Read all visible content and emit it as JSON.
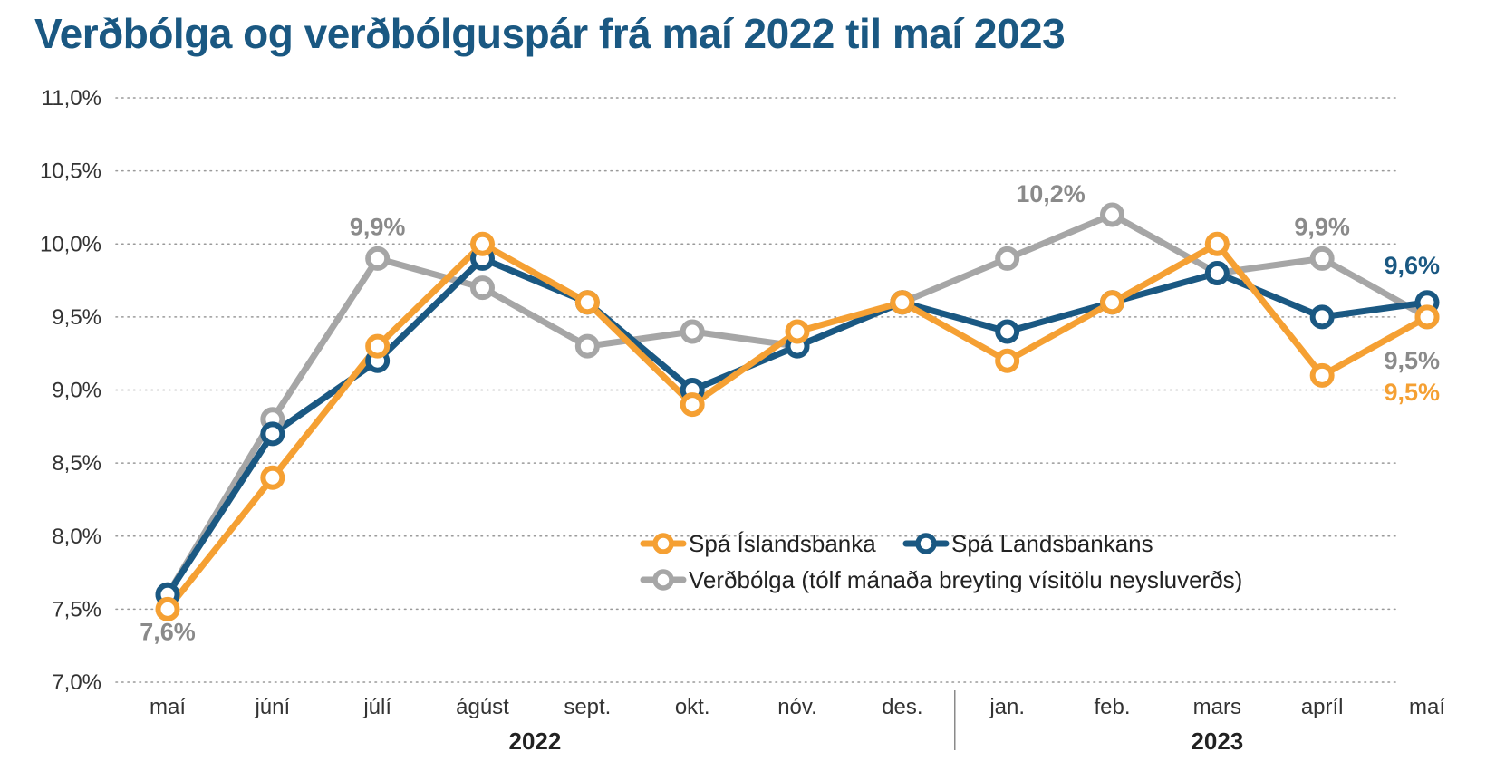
{
  "title": "Verðbólga og verðbólguspár frá maí 2022 til maí 2023",
  "chart_data": {
    "type": "line",
    "title": "Verðbólga og verðbólguspár frá maí 2022 til maí 2023",
    "categories": [
      "maí",
      "júní",
      "júlí",
      "ágúst",
      "sept.",
      "okt.",
      "nóv.",
      "des.",
      "jan.",
      "feb.",
      "mars",
      "apríl",
      "maí"
    ],
    "year_groups": [
      {
        "label": "2022",
        "from": 0,
        "to": 7
      },
      {
        "label": "2023",
        "from": 8,
        "to": 12
      }
    ],
    "ylim": [
      7.0,
      11.0
    ],
    "yticks": [
      7.0,
      7.5,
      8.0,
      8.5,
      9.0,
      9.5,
      10.0,
      10.5,
      11.0
    ],
    "ytick_labels": [
      "7,0%",
      "7,5%",
      "8,0%",
      "8,5%",
      "9,0%",
      "9,5%",
      "10,0%",
      "10,5%",
      "11,0%"
    ],
    "grid": "horizontal dotted",
    "legend_position": "bottom-right",
    "series": [
      {
        "name": "Verðbólga (tólf mánaða breyting vísitölu neysluverðs)",
        "color": "#a6a6a6",
        "values": [
          7.6,
          8.8,
          9.9,
          9.7,
          9.3,
          9.4,
          9.3,
          9.6,
          9.9,
          10.2,
          9.8,
          9.9,
          9.5
        ]
      },
      {
        "name": "Spá Landsbankans",
        "color": "#1a5882",
        "values": [
          7.6,
          8.7,
          9.2,
          9.9,
          9.6,
          9.0,
          9.3,
          9.6,
          9.4,
          9.6,
          9.8,
          9.5,
          9.6
        ]
      },
      {
        "name": "Spá Íslandsbanka",
        "color": "#f5a033",
        "values": [
          7.5,
          8.4,
          9.3,
          10.0,
          9.6,
          8.9,
          9.4,
          9.6,
          9.2,
          9.6,
          10.0,
          9.1,
          9.5
        ]
      }
    ],
    "legend": [
      {
        "label": "Spá Íslandsbanka",
        "color": "#f5a033"
      },
      {
        "label": "Spá Landsbankans",
        "color": "#1a5882"
      },
      {
        "label": "Verðbólga (tólf mánaða breyting vísitölu neysluverðs)",
        "color": "#a6a6a6"
      }
    ],
    "annotations": [
      {
        "text": "7,6%",
        "index": 0,
        "value": 7.6,
        "color": "#8a8a8a",
        "placement": "below"
      },
      {
        "text": "9,9%",
        "index": 2,
        "value": 9.9,
        "color": "#8a8a8a",
        "placement": "above"
      },
      {
        "text": "10,2%",
        "index": 9,
        "value": 10.2,
        "color": "#8a8a8a",
        "placement": "left-above"
      },
      {
        "text": "9,9%",
        "index": 11,
        "value": 9.9,
        "color": "#8a8a8a",
        "placement": "above"
      },
      {
        "text": "9,6%",
        "index": 12,
        "value": 9.6,
        "color": "#1a5882",
        "placement": "above"
      },
      {
        "text": "9,5%",
        "index": 12,
        "value": 9.5,
        "color": "#8a8a8a",
        "placement": "below"
      },
      {
        "text": "9,5%",
        "index": 12,
        "value": 9.5,
        "color": "#f5a033",
        "placement": "below-2"
      }
    ]
  }
}
